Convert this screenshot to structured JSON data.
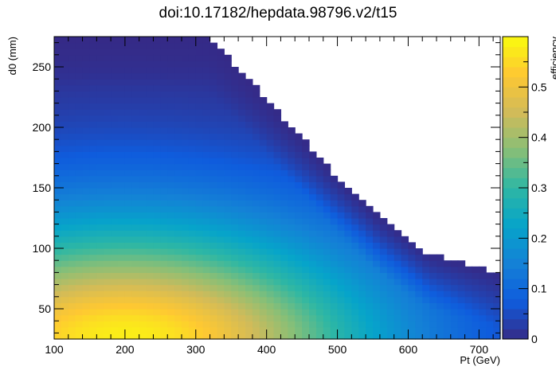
{
  "chart_data": {
    "type": "heatmap",
    "title": "doi:10.17182/hepdata.98796.v2/t15",
    "xlabel": "Pt (GeV)",
    "ylabel": "d0 (mm)",
    "zlabel": "efficiency",
    "xlim": [
      100,
      730
    ],
    "ylim": [
      25,
      275
    ],
    "zlim": [
      0,
      0.6
    ],
    "xticks": [
      "100",
      "200",
      "300",
      "400",
      "500",
      "600",
      "700"
    ],
    "yticks": [
      "50",
      "100",
      "150",
      "200",
      "250"
    ],
    "zticks": [
      "0",
      "0.1",
      "0.2",
      "0.3",
      "0.4",
      "0.5"
    ],
    "xbin_width": 10,
    "ybin_width": 5,
    "max_efficiency": 0.58,
    "efficiency_peak": {
      "pt": 200,
      "d0": 30
    },
    "boundary": [
      [
        100,
        275
      ],
      [
        320,
        275
      ],
      [
        420,
        210
      ],
      [
        490,
        165
      ],
      [
        560,
        125
      ],
      [
        630,
        95
      ],
      [
        730,
        80
      ]
    ],
    "colormap": [
      "#352a87",
      "#0f5cdd",
      "#1481d6",
      "#06a4ca",
      "#2eb7a4",
      "#87bf77",
      "#d1bb59",
      "#fec832",
      "#f9fb0e"
    ]
  }
}
